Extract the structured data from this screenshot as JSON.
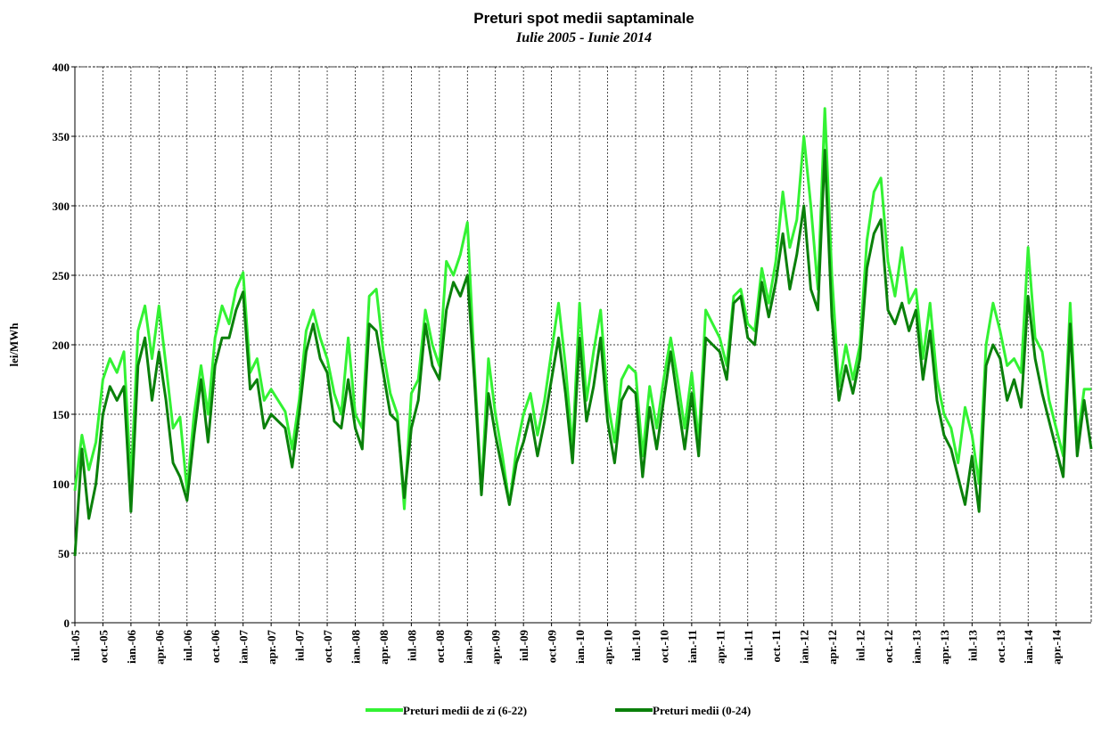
{
  "chart_data": {
    "type": "line",
    "title": "Preturi spot medii saptaminale",
    "subtitle": "Iulie 2005 - Iunie 2014",
    "y_label": "lei/MWh",
    "categories": [
      "iul.-05",
      null,
      null,
      null,
      "oct.-05",
      null,
      null,
      null,
      "ian.-06",
      null,
      null,
      null,
      "apr.-06",
      null,
      null,
      null,
      "iul.-06",
      null,
      null,
      null,
      "oct.-06",
      null,
      null,
      null,
      "ian.-07",
      null,
      null,
      null,
      "apr.-07",
      null,
      null,
      null,
      "iul.-07",
      null,
      null,
      null,
      "oct.-07",
      null,
      null,
      null,
      "ian.-08",
      null,
      null,
      null,
      "apr.-08",
      null,
      null,
      null,
      "iul.-08",
      null,
      null,
      null,
      "oct.-08",
      null,
      null,
      null,
      "ian.-09",
      null,
      null,
      null,
      "apr.-09",
      null,
      null,
      null,
      "iul.-09",
      null,
      null,
      null,
      "oct.-09",
      null,
      null,
      null,
      "ian.-10",
      null,
      null,
      null,
      "apr.-10",
      null,
      null,
      null,
      "iul.-10",
      null,
      null,
      null,
      "oct.-10",
      null,
      null,
      null,
      "ian.-11",
      null,
      null,
      null,
      "apr.-11",
      null,
      null,
      null,
      "iul.-11",
      null,
      null,
      null,
      "oct.-11",
      null,
      null,
      null,
      "ian.-12",
      null,
      null,
      null,
      "apr.-12",
      null,
      null,
      null,
      "iul.-12",
      null,
      null,
      null,
      "oct.-12",
      null,
      null,
      null,
      "ian.-13",
      null,
      null,
      null,
      "apr.-13",
      null,
      null,
      null,
      "iul.-13",
      null,
      null,
      null,
      "oct.-13",
      null,
      null,
      null,
      "ian.-14",
      null,
      null,
      null,
      "apr.-14",
      null,
      null,
      null,
      null,
      null
    ],
    "series": [
      {
        "name": "Preturi medii de zi (6-22)",
        "color": "#33f233",
        "values": [
          95,
          135,
          110,
          130,
          175,
          190,
          180,
          195,
          100,
          210,
          228,
          190,
          228,
          185,
          140,
          148,
          95,
          150,
          185,
          150,
          205,
          228,
          215,
          240,
          252,
          180,
          190,
          160,
          168,
          160,
          152,
          125,
          160,
          210,
          225,
          205,
          190,
          165,
          150,
          205,
          150,
          140,
          235,
          240,
          195,
          165,
          150,
          82,
          165,
          175,
          225,
          200,
          185,
          260,
          250,
          265,
          288,
          185,
          95,
          190,
          150,
          120,
          85,
          125,
          150,
          165,
          135,
          160,
          195,
          230,
          185,
          125,
          230,
          160,
          195,
          225,
          160,
          130,
          175,
          185,
          180,
          120,
          170,
          140,
          175,
          205,
          175,
          140,
          180,
          130,
          225,
          215,
          205,
          185,
          235,
          240,
          215,
          210,
          255,
          230,
          260,
          310,
          270,
          290,
          350,
          300,
          240,
          370,
          250,
          170,
          200,
          175,
          200,
          275,
          310,
          320,
          260,
          235,
          270,
          230,
          240,
          190,
          230,
          175,
          150,
          140,
          115,
          155,
          135,
          100,
          200,
          230,
          210,
          185,
          190,
          180,
          270,
          205,
          195,
          160,
          140,
          120,
          230,
          130,
          168,
          168
        ]
      },
      {
        "name": "Preturi medii (0-24)",
        "color": "#0a800a",
        "values": [
          48,
          125,
          75,
          100,
          150,
          170,
          160,
          170,
          80,
          185,
          205,
          160,
          195,
          160,
          115,
          105,
          88,
          135,
          175,
          130,
          185,
          205,
          205,
          225,
          238,
          168,
          175,
          140,
          150,
          145,
          140,
          112,
          150,
          195,
          215,
          190,
          180,
          145,
          140,
          175,
          140,
          125,
          215,
          210,
          180,
          150,
          145,
          90,
          140,
          160,
          215,
          185,
          175,
          225,
          245,
          235,
          250,
          175,
          92,
          165,
          135,
          110,
          85,
          115,
          130,
          150,
          120,
          145,
          175,
          205,
          165,
          115,
          205,
          145,
          170,
          205,
          145,
          115,
          160,
          170,
          165,
          105,
          155,
          125,
          160,
          195,
          160,
          125,
          165,
          120,
          205,
          200,
          195,
          175,
          230,
          235,
          205,
          200,
          245,
          220,
          245,
          280,
          240,
          265,
          300,
          240,
          225,
          340,
          220,
          160,
          185,
          165,
          190,
          255,
          280,
          290,
          225,
          215,
          230,
          210,
          225,
          175,
          210,
          160,
          135,
          125,
          105,
          85,
          120,
          80,
          185,
          200,
          190,
          160,
          175,
          155,
          235,
          190,
          165,
          145,
          125,
          105,
          215,
          120,
          160,
          125
        ]
      }
    ],
    "ylim": [
      0,
      400
    ],
    "yticks": [
      0,
      50,
      100,
      150,
      200,
      250,
      300,
      350,
      400
    ],
    "grid": true,
    "legend": "bottom"
  }
}
